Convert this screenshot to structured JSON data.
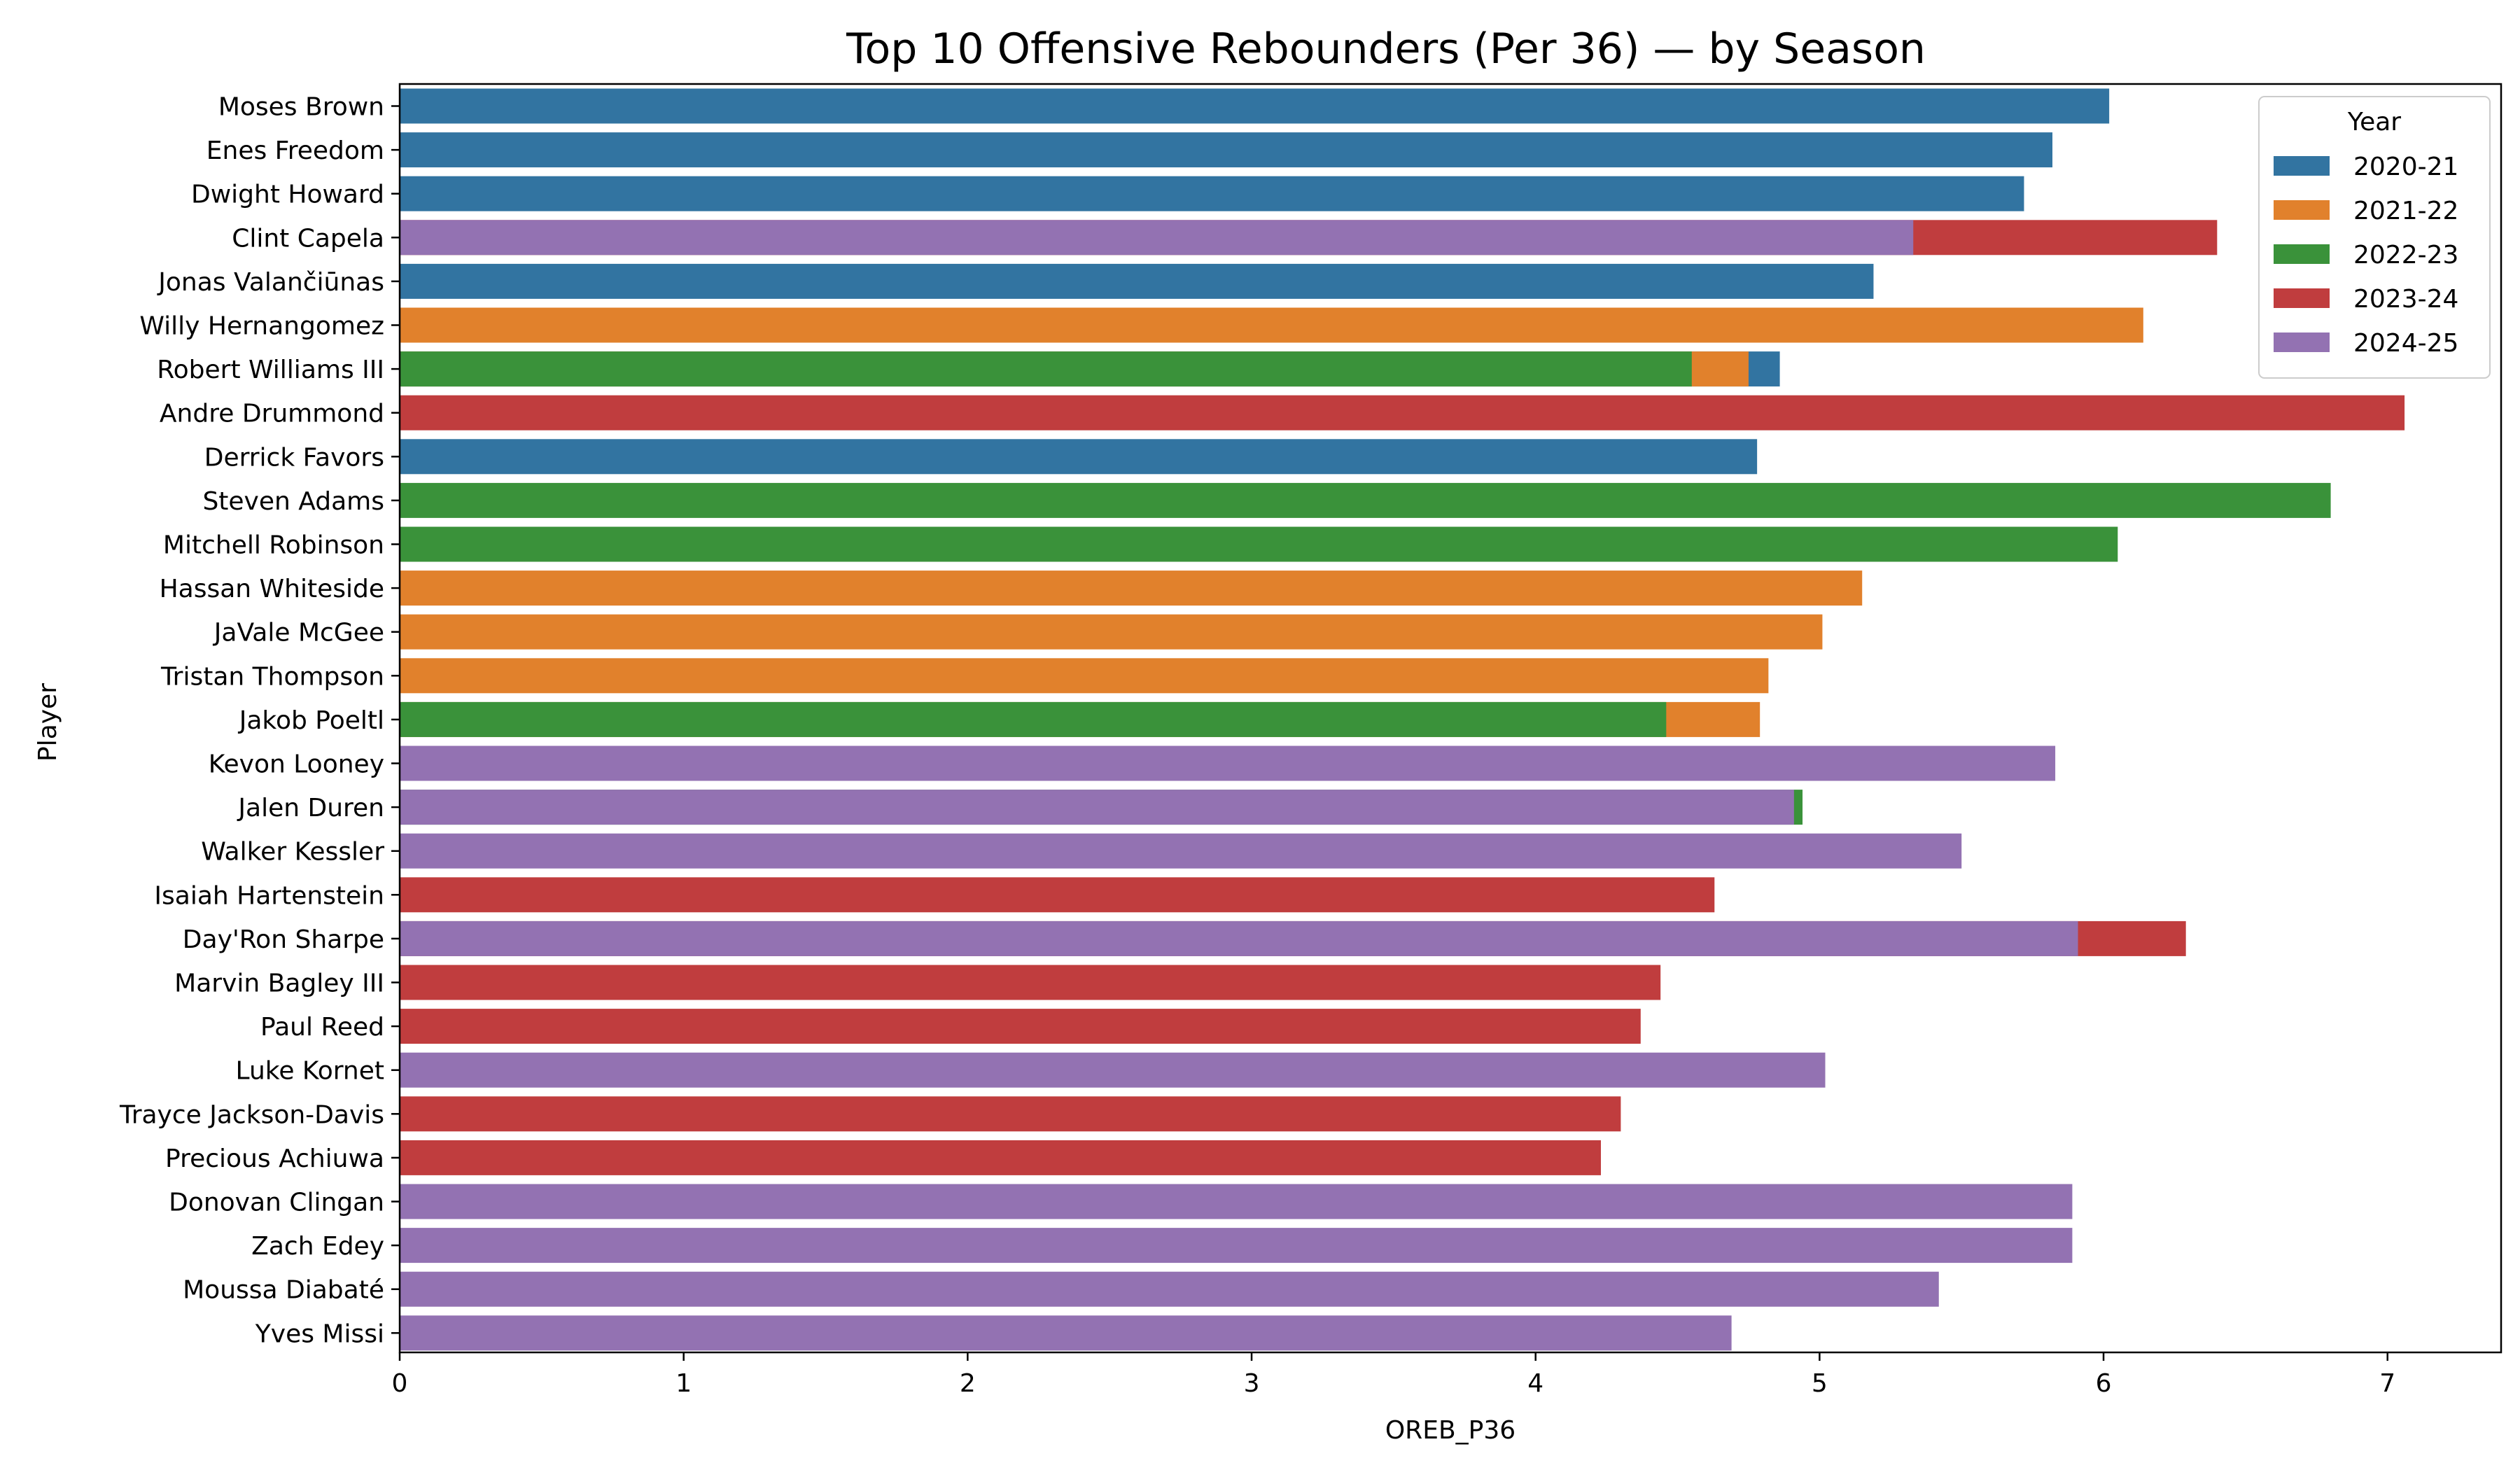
{
  "chart_data": {
    "type": "bar",
    "orientation": "horizontal",
    "title": "Top 10 Offensive Rebounders (Per 36) — by Season",
    "xlabel": "OREB_P36",
    "ylabel": "Player",
    "xlim": [
      0,
      7.4
    ],
    "xticks": [
      "0",
      "1",
      "2",
      "3",
      "4",
      "5",
      "6",
      "7"
    ],
    "grid": false,
    "legend_title": "Year",
    "legend_position": "top-right",
    "categories": [
      "Moses Brown",
      "Enes Freedom",
      "Dwight Howard",
      "Clint Capela",
      "Jonas Valančiūnas",
      "Willy Hernangomez",
      "Robert Williams III",
      "Andre Drummond",
      "Derrick Favors",
      "Steven Adams",
      "Mitchell Robinson",
      "Hassan Whiteside",
      "JaVale McGee",
      "Tristan Thompson",
      "Jakob Poeltl",
      "Kevon Looney",
      "Jalen Duren",
      "Walker Kessler",
      "Isaiah Hartenstein",
      "Day'Ron Sharpe",
      "Marvin Bagley III",
      "Paul Reed",
      "Luke Kornet",
      "Trayce Jackson-Davis",
      "Precious Achiuwa",
      "Donovan Clingan",
      "Zach Edey",
      "Moussa Diabaté",
      "Yves Missi"
    ],
    "series": [
      {
        "name": "2020-21",
        "color": "#3274a1",
        "values": [
          6.02,
          5.82,
          5.72,
          null,
          5.19,
          null,
          4.86,
          null,
          4.78,
          null,
          null,
          null,
          null,
          null,
          null,
          null,
          null,
          null,
          null,
          null,
          null,
          null,
          null,
          null,
          null,
          null,
          null,
          null,
          null
        ]
      },
      {
        "name": "2021-22",
        "color": "#e1812c",
        "values": [
          null,
          null,
          null,
          null,
          null,
          6.14,
          4.75,
          null,
          null,
          null,
          null,
          5.15,
          5.01,
          4.82,
          4.79,
          null,
          null,
          null,
          null,
          null,
          null,
          null,
          null,
          null,
          null,
          null,
          null,
          null,
          null
        ]
      },
      {
        "name": "2022-23",
        "color": "#3a923a",
        "values": [
          null,
          null,
          null,
          null,
          null,
          null,
          4.55,
          null,
          null,
          6.8,
          6.05,
          null,
          null,
          null,
          4.46,
          null,
          4.94,
          null,
          null,
          null,
          null,
          null,
          null,
          null,
          null,
          null,
          null,
          null,
          null
        ]
      },
      {
        "name": "2023-24",
        "color": "#c03d3e",
        "values": [
          null,
          null,
          null,
          6.4,
          null,
          null,
          null,
          7.06,
          null,
          null,
          null,
          null,
          null,
          null,
          null,
          null,
          null,
          null,
          4.63,
          6.29,
          4.44,
          4.37,
          null,
          4.3,
          4.23,
          null,
          null,
          null,
          null
        ]
      },
      {
        "name": "2024-25",
        "color": "#9372b2",
        "values": [
          null,
          null,
          null,
          5.33,
          null,
          null,
          null,
          null,
          null,
          null,
          null,
          null,
          null,
          null,
          null,
          5.83,
          4.91,
          5.5,
          null,
          5.91,
          null,
          null,
          5.02,
          null,
          null,
          5.89,
          5.89,
          5.42,
          4.69
        ]
      }
    ]
  }
}
